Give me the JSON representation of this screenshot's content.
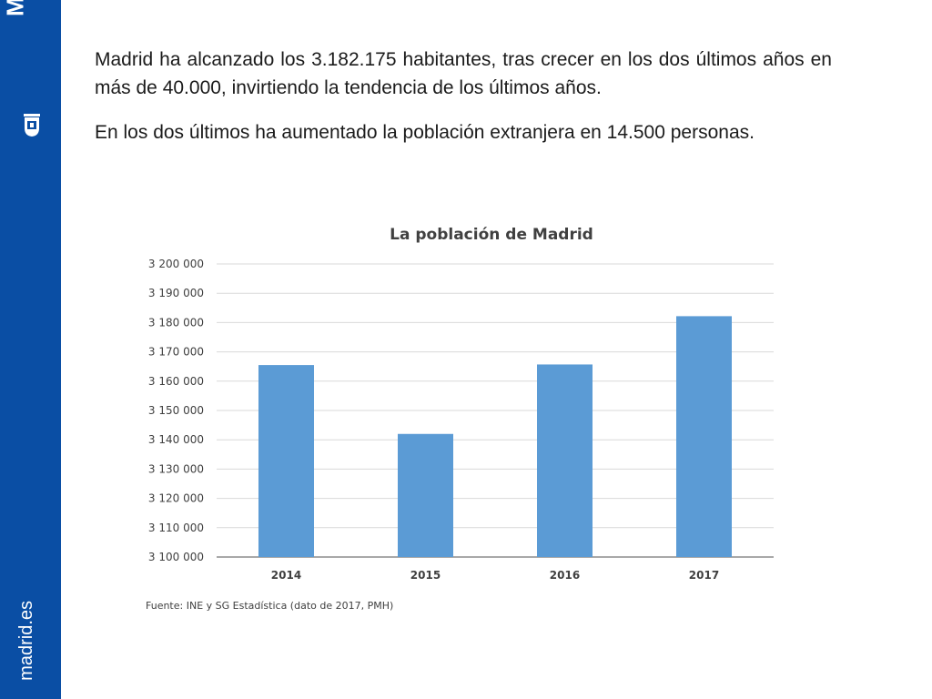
{
  "sidebar": {
    "brand": "MADRID",
    "url": "madrid.es",
    "icon": "madrid-crest-icon",
    "color": "#0a4ea4"
  },
  "text": {
    "paragraph1": "Madrid ha alcanzado los 3.182.175 habitantes, tras crecer en los dos últimos años en más de 40.000, invirtiendo la tendencia de los últimos años.",
    "paragraph2": "En los dos últimos ha aumentado la población extranjera en 14.500 personas."
  },
  "chart_data": {
    "type": "bar",
    "title": "La población de Madrid",
    "categories": [
      "2014",
      "2015",
      "2016",
      "2017"
    ],
    "values": [
      3165500,
      3142000,
      3165700,
      3182175
    ],
    "ylim": [
      3100000,
      3200000
    ],
    "ytick_step": 10000,
    "ytick_labels": [
      "3 100 000",
      "3 110 000",
      "3 120 000",
      "3 130 000",
      "3 140 000",
      "3 150 000",
      "3 160 000",
      "3 170 000",
      "3 180 000",
      "3 190 000",
      "3 200 000"
    ],
    "xlabel": "",
    "ylabel": "",
    "grid": true,
    "bar_color": "#5b9bd5",
    "source": "Fuente: INE y SG Estadística (dato de 2017, PMH)"
  }
}
